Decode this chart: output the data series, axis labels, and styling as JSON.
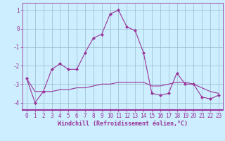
{
  "line1_x": [
    0,
    1,
    2,
    3,
    4,
    5,
    6,
    7,
    8,
    9,
    10,
    11,
    12,
    13,
    14,
    15,
    16,
    17,
    18,
    19,
    20,
    21,
    22,
    23
  ],
  "line1_y": [
    -2.7,
    -4.0,
    -3.4,
    -2.2,
    -1.9,
    -2.2,
    -2.2,
    -1.3,
    -0.5,
    -0.3,
    0.8,
    1.0,
    0.1,
    -0.1,
    -1.3,
    -3.5,
    -3.6,
    -3.5,
    -2.4,
    -3.0,
    -3.0,
    -3.7,
    -3.8,
    -3.6
  ],
  "line2_x": [
    0,
    1,
    2,
    3,
    4,
    5,
    6,
    7,
    8,
    9,
    10,
    11,
    12,
    13,
    14,
    15,
    16,
    17,
    18,
    19,
    20,
    21,
    22,
    23
  ],
  "line2_y": [
    -2.7,
    -3.4,
    -3.4,
    -3.4,
    -3.3,
    -3.3,
    -3.2,
    -3.2,
    -3.1,
    -3.0,
    -3.0,
    -2.9,
    -2.9,
    -2.9,
    -2.9,
    -3.1,
    -3.1,
    -3.0,
    -2.9,
    -2.9,
    -3.0,
    -3.2,
    -3.4,
    -3.5
  ],
  "line_color": "#993399",
  "bg_color": "#cceeff",
  "grid_color": "#99bbcc",
  "xlabel": "Windchill (Refroidissement éolien,°C)",
  "xlim": [
    -0.5,
    23.5
  ],
  "ylim": [
    -4.4,
    1.4
  ],
  "yticks": [
    1,
    0,
    -1,
    -2,
    -3,
    -4
  ],
  "xticks": [
    0,
    1,
    2,
    3,
    4,
    5,
    6,
    7,
    8,
    9,
    10,
    11,
    12,
    13,
    14,
    15,
    16,
    17,
    18,
    19,
    20,
    21,
    22,
    23
  ],
  "xlabel_fontsize": 6.0,
  "tick_fontsize": 5.5,
  "marker_size": 2.5,
  "line_width": 0.8
}
